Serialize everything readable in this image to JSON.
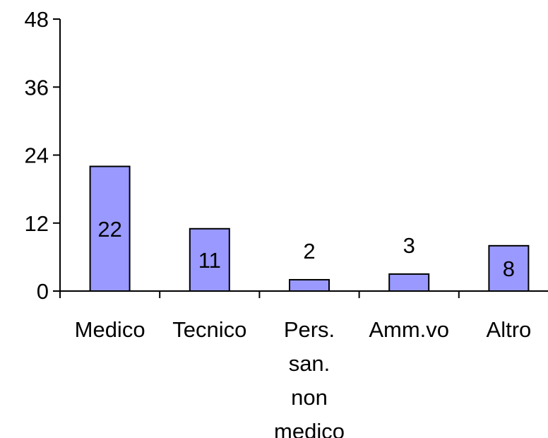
{
  "chart_data": {
    "type": "bar",
    "categories": [
      "Medico",
      "Tecnico",
      "Pers. san. non medico",
      "Amm.vo",
      "Altro"
    ],
    "category_label_lines": [
      [
        "Medico"
      ],
      [
        "Tecnico"
      ],
      [
        "Pers.",
        "san.",
        "non",
        "medico"
      ],
      [
        "Amm.vo"
      ],
      [
        "Altro"
      ]
    ],
    "values": [
      22,
      11,
      2,
      3,
      8
    ],
    "data_labels": [
      "22",
      "11",
      "2",
      "3",
      "8"
    ],
    "title": "",
    "xlabel": "",
    "ylabel": "",
    "ylim": [
      0,
      48
    ],
    "yticks": [
      0,
      12,
      24,
      36,
      48
    ],
    "ytick_labels": [
      "0",
      "12",
      "24",
      "36",
      "48"
    ],
    "grid": false,
    "legend": "none",
    "colors": {
      "bar_fill": "#9999ff",
      "bar_stroke": "#000000",
      "axis": "#000000",
      "text": "#000000"
    }
  }
}
